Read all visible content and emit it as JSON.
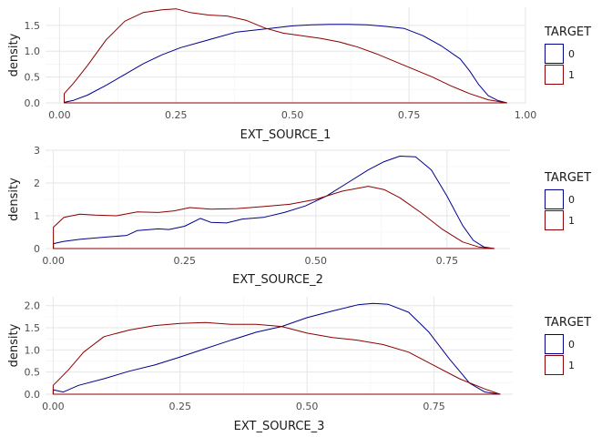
{
  "chart_data": [
    {
      "type": "line",
      "xlabel": "EXT_SOURCE_1",
      "ylabel": "density",
      "xlim": [
        -0.03,
        1.0
      ],
      "ylim": [
        0,
        1.85
      ],
      "x_ticks": [
        0.0,
        0.25,
        0.5,
        0.75,
        1.0
      ],
      "x_tick_labels": [
        "0.00",
        "0.25",
        "0.50",
        "0.75",
        "1.00"
      ],
      "y_ticks": [
        0.0,
        0.5,
        1.0,
        1.5
      ],
      "y_tick_labels": [
        "0.0",
        "0.5",
        "1.0",
        "1.5"
      ],
      "grid": true,
      "legend": {
        "title": "TARGET",
        "placement": "right",
        "entries": [
          "0",
          "1"
        ]
      },
      "series": [
        {
          "name": "0",
          "color": "#00008B",
          "x": [
            0.01,
            0.03,
            0.06,
            0.1,
            0.14,
            0.18,
            0.22,
            0.26,
            0.3,
            0.34,
            0.38,
            0.42,
            0.46,
            0.5,
            0.54,
            0.58,
            0.62,
            0.66,
            0.7,
            0.74,
            0.78,
            0.82,
            0.86,
            0.88,
            0.9,
            0.92,
            0.94,
            0.96
          ],
          "y": [
            0.01,
            0.05,
            0.15,
            0.34,
            0.55,
            0.76,
            0.93,
            1.07,
            1.17,
            1.27,
            1.37,
            1.41,
            1.45,
            1.49,
            1.51,
            1.52,
            1.52,
            1.51,
            1.48,
            1.44,
            1.3,
            1.1,
            0.85,
            0.62,
            0.35,
            0.14,
            0.05,
            0.0
          ]
        },
        {
          "name": "1",
          "color": "#8B0000",
          "x": [
            0.01,
            0.03,
            0.06,
            0.1,
            0.14,
            0.18,
            0.22,
            0.25,
            0.28,
            0.32,
            0.36,
            0.4,
            0.44,
            0.48,
            0.52,
            0.56,
            0.6,
            0.64,
            0.68,
            0.72,
            0.76,
            0.8,
            0.84,
            0.88,
            0.92,
            0.96
          ],
          "y": [
            0.18,
            0.38,
            0.72,
            1.22,
            1.58,
            1.75,
            1.8,
            1.82,
            1.75,
            1.7,
            1.68,
            1.6,
            1.45,
            1.35,
            1.3,
            1.25,
            1.18,
            1.08,
            0.95,
            0.8,
            0.65,
            0.5,
            0.33,
            0.18,
            0.06,
            0.0
          ]
        }
      ]
    },
    {
      "type": "line",
      "xlabel": "EXT_SOURCE_2",
      "ylabel": "density",
      "xlim": [
        -0.015,
        0.87
      ],
      "ylim": [
        0,
        3.0
      ],
      "x_ticks": [
        0.0,
        0.25,
        0.5,
        0.75
      ],
      "x_tick_labels": [
        "0.00",
        "0.25",
        "0.50",
        "0.75"
      ],
      "y_ticks": [
        0,
        1,
        2,
        3
      ],
      "y_tick_labels": [
        "0",
        "1",
        "2",
        "3"
      ],
      "grid": true,
      "legend": {
        "title": "TARGET",
        "placement": "right",
        "entries": [
          "0",
          "1"
        ]
      },
      "series": [
        {
          "name": "0",
          "color": "#00008B",
          "x": [
            0.0,
            0.02,
            0.05,
            0.1,
            0.14,
            0.16,
            0.2,
            0.22,
            0.25,
            0.28,
            0.3,
            0.33,
            0.36,
            0.4,
            0.44,
            0.48,
            0.52,
            0.56,
            0.6,
            0.63,
            0.66,
            0.69,
            0.72,
            0.75,
            0.78,
            0.8,
            0.82,
            0.84
          ],
          "y": [
            0.15,
            0.22,
            0.28,
            0.35,
            0.4,
            0.55,
            0.6,
            0.58,
            0.68,
            0.92,
            0.8,
            0.78,
            0.9,
            0.95,
            1.1,
            1.3,
            1.6,
            2.0,
            2.4,
            2.65,
            2.82,
            2.8,
            2.4,
            1.6,
            0.7,
            0.25,
            0.05,
            0.0
          ]
        },
        {
          "name": "1",
          "color": "#8B0000",
          "x": [
            0.0,
            0.02,
            0.05,
            0.08,
            0.12,
            0.16,
            0.2,
            0.23,
            0.26,
            0.3,
            0.35,
            0.4,
            0.45,
            0.5,
            0.55,
            0.6,
            0.63,
            0.66,
            0.7,
            0.74,
            0.78,
            0.81,
            0.84
          ],
          "y": [
            0.65,
            0.95,
            1.05,
            1.02,
            1.0,
            1.12,
            1.1,
            1.15,
            1.25,
            1.2,
            1.22,
            1.28,
            1.35,
            1.5,
            1.75,
            1.9,
            1.8,
            1.55,
            1.1,
            0.6,
            0.2,
            0.05,
            0.0
          ]
        }
      ]
    },
    {
      "type": "line",
      "xlabel": "EXT_SOURCE_3",
      "ylabel": "density",
      "xlim": [
        -0.015,
        0.905
      ],
      "ylim": [
        0,
        2.2
      ],
      "x_ticks": [
        0.0,
        0.25,
        0.5,
        0.75
      ],
      "x_tick_labels": [
        "0.00",
        "0.25",
        "0.50",
        "0.75"
      ],
      "y_ticks": [
        0.0,
        0.5,
        1.0,
        1.5,
        2.0
      ],
      "y_tick_labels": [
        "0.0",
        "0.5",
        "1.0",
        "1.5",
        "2.0"
      ],
      "grid": true,
      "legend": {
        "title": "TARGET",
        "placement": "right",
        "entries": [
          "0",
          "1"
        ]
      },
      "series": [
        {
          "name": "0",
          "color": "#00008B",
          "x": [
            0.0,
            0.02,
            0.05,
            0.1,
            0.15,
            0.2,
            0.25,
            0.3,
            0.35,
            0.4,
            0.45,
            0.5,
            0.55,
            0.6,
            0.63,
            0.66,
            0.7,
            0.74,
            0.78,
            0.82,
            0.85,
            0.88
          ],
          "y": [
            0.1,
            0.05,
            0.2,
            0.35,
            0.52,
            0.66,
            0.84,
            1.03,
            1.22,
            1.4,
            1.53,
            1.73,
            1.88,
            2.02,
            2.05,
            2.03,
            1.85,
            1.4,
            0.8,
            0.25,
            0.05,
            0.0
          ]
        },
        {
          "name": "1",
          "color": "#8B0000",
          "x": [
            0.0,
            0.03,
            0.06,
            0.1,
            0.15,
            0.2,
            0.25,
            0.3,
            0.35,
            0.4,
            0.45,
            0.5,
            0.55,
            0.6,
            0.65,
            0.7,
            0.75,
            0.8,
            0.85,
            0.88
          ],
          "y": [
            0.2,
            0.55,
            0.95,
            1.3,
            1.45,
            1.55,
            1.6,
            1.62,
            1.58,
            1.58,
            1.53,
            1.38,
            1.28,
            1.22,
            1.12,
            0.95,
            0.65,
            0.35,
            0.12,
            0.0
          ]
        }
      ]
    }
  ]
}
